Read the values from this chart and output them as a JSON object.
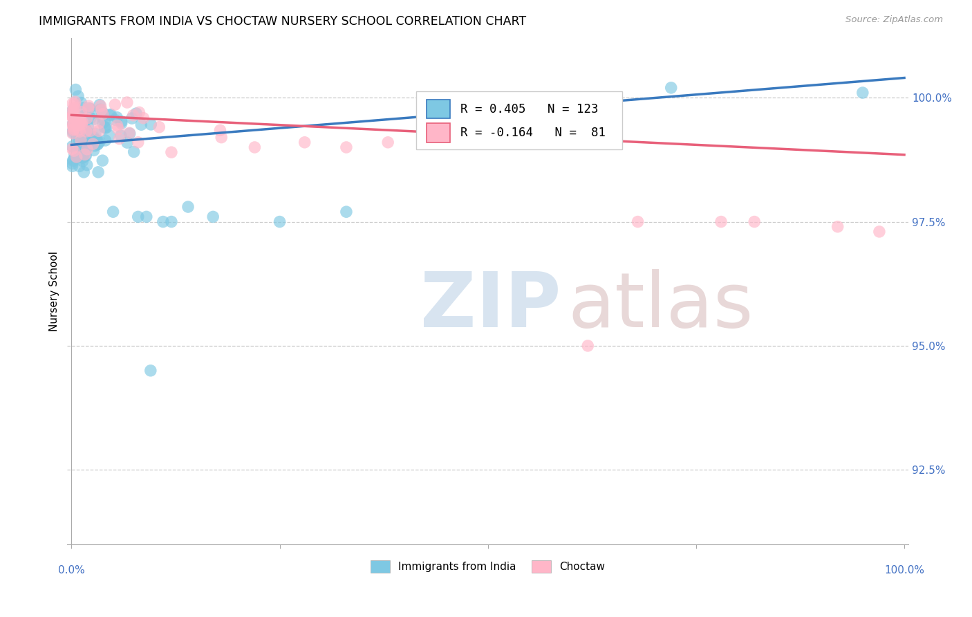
{
  "title": "IMMIGRANTS FROM INDIA VS CHOCTAW NURSERY SCHOOL CORRELATION CHART",
  "source": "Source: ZipAtlas.com",
  "ylabel": "Nursery School",
  "legend_india": "Immigrants from India",
  "legend_choctaw": "Choctaw",
  "R_india": 0.405,
  "N_india": 123,
  "R_choctaw": -0.164,
  "N_choctaw": 81,
  "color_india": "#7ec8e3",
  "color_choctaw": "#ffb6c8",
  "color_india_line": "#3a7abf",
  "color_choctaw_line": "#e8607a",
  "watermark_zip_color": "#d8e4f0",
  "watermark_atlas_color": "#e8d8d8",
  "ytick_color": "#4472c4",
  "ytick_vals": [
    92.5,
    95.0,
    97.5,
    100.0
  ],
  "ytick_labels": [
    "92.5%",
    "95.0%",
    "97.5%",
    "100.0%"
  ],
  "ylim_min": 91.0,
  "ylim_max": 101.2,
  "xlim_min": -0.005,
  "xlim_max": 1.005,
  "india_line_x0": 0.0,
  "india_line_y0": 99.05,
  "india_line_x1": 1.0,
  "india_line_y1": 100.4,
  "choctaw_line_x0": 0.0,
  "choctaw_line_y0": 99.65,
  "choctaw_line_x1": 1.0,
  "choctaw_line_y1": 98.85
}
